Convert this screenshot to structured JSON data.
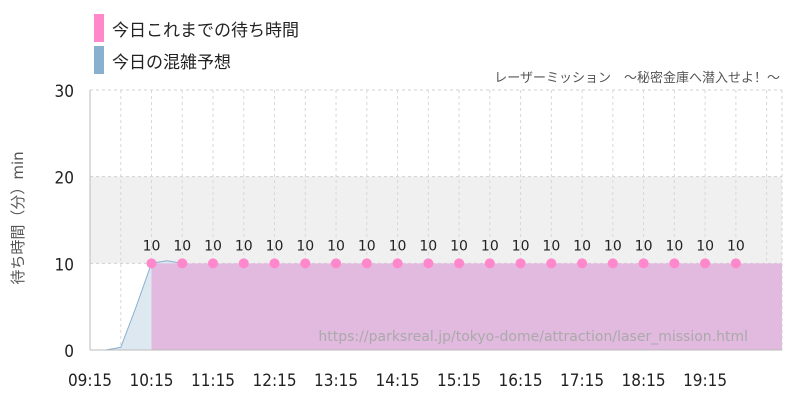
{
  "chart_data": {
    "type": "line",
    "subtitle": "レーザーミッション　～秘密金庫へ潜入せよ！～",
    "ylabel": "待ち時間（分）min",
    "ylim": [
      0,
      30
    ],
    "yticks": [
      "0",
      "10",
      "20",
      "30"
    ],
    "xticks": [
      "09:15",
      "10:15",
      "11:15",
      "12:15",
      "13:15",
      "14:15",
      "15:15",
      "16:15",
      "17:15",
      "18:15",
      "19:15"
    ],
    "xlim": [
      "09:15",
      "20:30"
    ],
    "shaded_band": [
      10,
      20
    ],
    "grid": true,
    "legend_position": "top-left",
    "watermark": "https://parksreal.jp/tokyo-dome/attraction/laser_mission.html",
    "series": [
      {
        "name": "今日これまでの待ち時間",
        "type": "area-step",
        "color": "#ff88cc",
        "fill": "#e2b9df",
        "x": [
          "10:15",
          "10:45",
          "11:15",
          "11:45",
          "12:15",
          "12:45",
          "13:15",
          "13:45",
          "14:15",
          "14:45",
          "15:15",
          "15:45",
          "16:15",
          "16:45",
          "17:15",
          "17:45",
          "18:15",
          "18:45",
          "19:15",
          "19:45"
        ],
        "values": [
          10,
          10,
          10,
          10,
          10,
          10,
          10,
          10,
          10,
          10,
          10,
          10,
          10,
          10,
          10,
          10,
          10,
          10,
          10,
          10
        ],
        "labels": [
          "10",
          "10",
          "10",
          "10",
          "10",
          "10",
          "10",
          "10",
          "10",
          "10",
          "10",
          "10",
          "10",
          "10",
          "10",
          "10",
          "10",
          "10",
          "10",
          "10"
        ]
      },
      {
        "name": "今日の混雑予想",
        "type": "area",
        "color": "#8ab0d0",
        "fill": "#dde8f0",
        "x": [
          "09:15",
          "09:30",
          "09:45",
          "10:00",
          "10:15",
          "10:30",
          "10:45"
        ],
        "values": [
          0,
          0,
          0.3,
          5,
          10,
          10.3,
          10
        ]
      }
    ]
  }
}
